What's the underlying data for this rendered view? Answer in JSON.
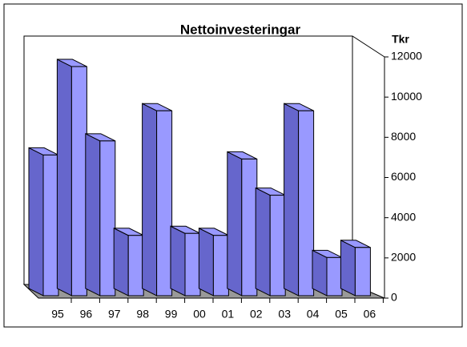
{
  "chart_data": {
    "type": "bar",
    "title": "Nettoinvesteringar",
    "y_label": "Tkr",
    "categories": [
      "95",
      "96",
      "97",
      "98",
      "99",
      "00",
      "01",
      "02",
      "03",
      "04",
      "05",
      "06"
    ],
    "values": [
      7000,
      11400,
      7700,
      3000,
      9200,
      3100,
      3000,
      6800,
      5000,
      9200,
      1900,
      2400
    ],
    "color": "#9999ff",
    "ylim": [
      0,
      12000
    ],
    "yticks": [
      0,
      2000,
      4000,
      6000,
      8000,
      10000,
      12000
    ]
  }
}
